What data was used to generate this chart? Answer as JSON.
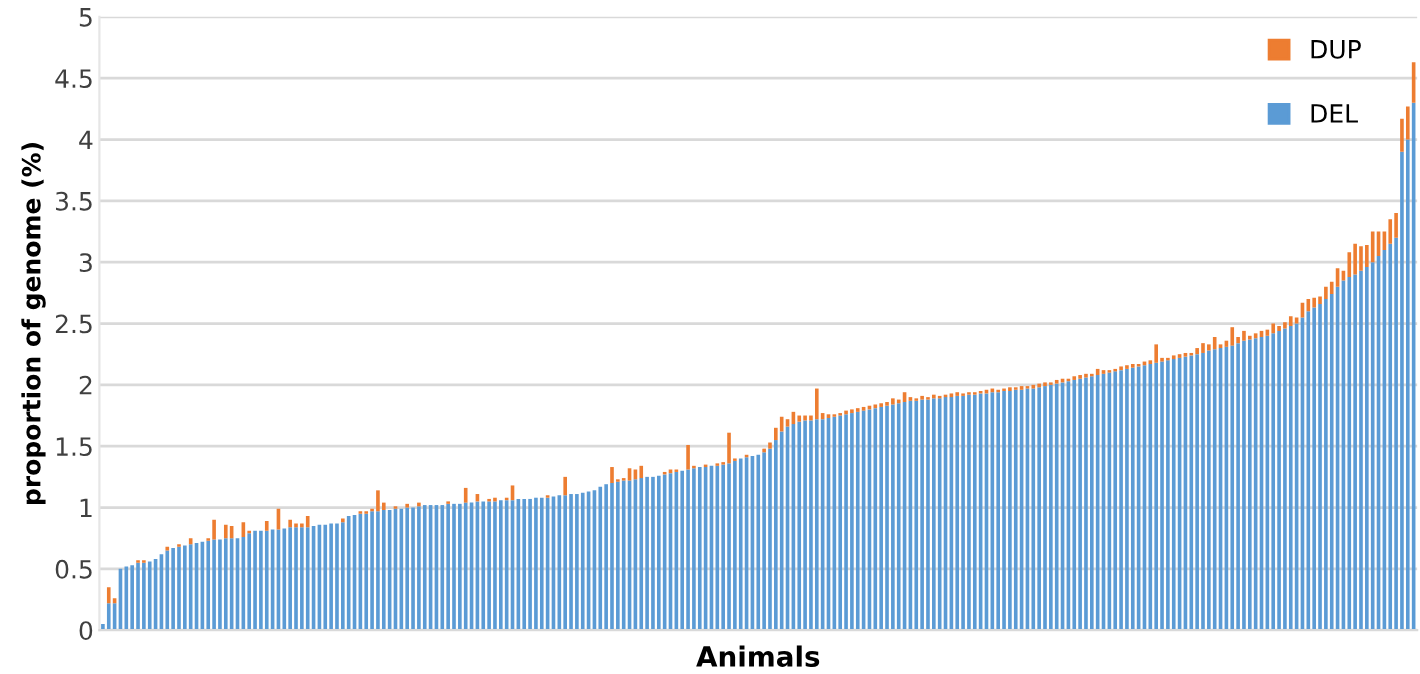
{
  "chart_data": {
    "type": "bar",
    "stacked": true,
    "xlabel": "Animals",
    "ylabel": "proportion of genome (%)",
    "categories": [
      null,
      null,
      null,
      null,
      null,
      null,
      null,
      null,
      null,
      null,
      null,
      null,
      null,
      null,
      null,
      null,
      null,
      null,
      null,
      null,
      null,
      null,
      null,
      null,
      null,
      null,
      null,
      null,
      null,
      null,
      null,
      null,
      null,
      null,
      null,
      null,
      null,
      null,
      null,
      null,
      null,
      null,
      null,
      null,
      null,
      null,
      null,
      null,
      null,
      null,
      null,
      null,
      null,
      null,
      null,
      null,
      null,
      null,
      null,
      null,
      null,
      null,
      null,
      null,
      null,
      null,
      null,
      null,
      null,
      null,
      null,
      null,
      null,
      null,
      null,
      null,
      null,
      null,
      null,
      null,
      null,
      null,
      null,
      null,
      null,
      null,
      null,
      null,
      null,
      null,
      null,
      null,
      null,
      null,
      null,
      null,
      null,
      null,
      null,
      null,
      null,
      null,
      null,
      null,
      null,
      null,
      null,
      null,
      null,
      null,
      null,
      null,
      null,
      null,
      null,
      null,
      null,
      null,
      null,
      null,
      null,
      null,
      null,
      null,
      null,
      null,
      null,
      null,
      null,
      null,
      null,
      null,
      null,
      null,
      null,
      null,
      null,
      null,
      null,
      null,
      null,
      null,
      null,
      null,
      null,
      null,
      null,
      null,
      null,
      null,
      null,
      null,
      null,
      null,
      null,
      null,
      null,
      null,
      null,
      null,
      null,
      null,
      null,
      null,
      null,
      null,
      null,
      null,
      null,
      null,
      null,
      null,
      null,
      null,
      null,
      null,
      null,
      null,
      null,
      null,
      null,
      null,
      null,
      null,
      null,
      null,
      null,
      null,
      null,
      null,
      null,
      null,
      null,
      null,
      null,
      null,
      null,
      null,
      null,
      null,
      null,
      null,
      null,
      null,
      null,
      null,
      null,
      null,
      null,
      null,
      null,
      null,
      null,
      null,
      null,
      null,
      null,
      null,
      null,
      null,
      null,
      null,
      null,
      null,
      null
    ],
    "series": [
      {
        "name": "DEL",
        "color": "#5b9bd5",
        "values": [
          0.05,
          0.22,
          0.22,
          0.5,
          0.52,
          0.53,
          0.55,
          0.55,
          0.56,
          0.58,
          0.62,
          0.65,
          0.67,
          0.68,
          0.69,
          0.7,
          0.71,
          0.72,
          0.73,
          0.74,
          0.74,
          0.75,
          0.75,
          0.75,
          0.76,
          0.79,
          0.81,
          0.81,
          0.81,
          0.82,
          0.82,
          0.83,
          0.84,
          0.84,
          0.84,
          0.84,
          0.85,
          0.86,
          0.86,
          0.87,
          0.87,
          0.88,
          0.93,
          0.94,
          0.95,
          0.95,
          0.97,
          0.97,
          0.98,
          0.98,
          0.99,
          0.99,
          1.0,
          1.0,
          1.01,
          1.02,
          1.02,
          1.02,
          1.02,
          1.03,
          1.03,
          1.03,
          1.04,
          1.04,
          1.05,
          1.05,
          1.05,
          1.05,
          1.06,
          1.06,
          1.06,
          1.07,
          1.07,
          1.07,
          1.08,
          1.08,
          1.08,
          1.09,
          1.1,
          1.1,
          1.11,
          1.11,
          1.12,
          1.13,
          1.14,
          1.17,
          1.19,
          1.2,
          1.21,
          1.22,
          1.22,
          1.23,
          1.24,
          1.25,
          1.25,
          1.26,
          1.27,
          1.28,
          1.29,
          1.3,
          1.31,
          1.32,
          1.33,
          1.33,
          1.34,
          1.34,
          1.35,
          1.36,
          1.38,
          1.4,
          1.41,
          1.42,
          1.43,
          1.45,
          1.48,
          1.55,
          1.62,
          1.66,
          1.68,
          1.7,
          1.71,
          1.71,
          1.72,
          1.72,
          1.73,
          1.74,
          1.75,
          1.76,
          1.77,
          1.78,
          1.79,
          1.8,
          1.81,
          1.82,
          1.83,
          1.84,
          1.85,
          1.86,
          1.87,
          1.87,
          1.88,
          1.88,
          1.89,
          1.89,
          1.9,
          1.9,
          1.91,
          1.91,
          1.92,
          1.92,
          1.93,
          1.93,
          1.94,
          1.94,
          1.95,
          1.95,
          1.96,
          1.96,
          1.97,
          1.97,
          1.98,
          1.99,
          2.0,
          2.01,
          2.02,
          2.03,
          2.04,
          2.05,
          2.06,
          2.07,
          2.08,
          2.09,
          2.1,
          2.11,
          2.12,
          2.13,
          2.14,
          2.15,
          2.16,
          2.17,
          2.18,
          2.19,
          2.2,
          2.21,
          2.22,
          2.23,
          2.24,
          2.25,
          2.26,
          2.28,
          2.29,
          2.3,
          2.31,
          2.32,
          2.34,
          2.36,
          2.37,
          2.38,
          2.39,
          2.4,
          2.42,
          2.44,
          2.46,
          2.48,
          2.5,
          2.55,
          2.6,
          2.63,
          2.66,
          2.7,
          2.74,
          2.8,
          2.85,
          2.88,
          2.9,
          2.93,
          2.96,
          3.0,
          3.05,
          3.1,
          3.15,
          3.2,
          3.9,
          4.0,
          4.3
        ]
      },
      {
        "name": "DUP",
        "color": "#ed7d31",
        "values": [
          0,
          0.13,
          0.04,
          0,
          0,
          0,
          0.02,
          0.02,
          0,
          0,
          0,
          0.03,
          0,
          0.02,
          0,
          0.05,
          0,
          0,
          0.02,
          0.16,
          0,
          0.11,
          0.1,
          0,
          0.12,
          0.02,
          0,
          0,
          0.08,
          0,
          0.17,
          0,
          0.06,
          0.03,
          0.03,
          0.09,
          0,
          0,
          0,
          0,
          0,
          0.03,
          0,
          0,
          0.02,
          0.02,
          0.02,
          0.17,
          0.06,
          0,
          0.02,
          0,
          0.03,
          0,
          0.03,
          0,
          0,
          0,
          0,
          0.02,
          0,
          0,
          0.12,
          0,
          0.06,
          0,
          0.02,
          0.03,
          0,
          0.02,
          0.12,
          0,
          0,
          0,
          0,
          0,
          0.02,
          0,
          0,
          0.15,
          0,
          0,
          0,
          0,
          0,
          0,
          0,
          0.13,
          0.02,
          0.02,
          0.1,
          0.08,
          0.1,
          0,
          0,
          0,
          0.02,
          0.03,
          0.02,
          0,
          0.2,
          0.02,
          0,
          0.02,
          0,
          0.02,
          0.02,
          0.25,
          0.02,
          0,
          0.02,
          0,
          0,
          0.03,
          0.05,
          0.1,
          0.12,
          0.06,
          0.1,
          0.05,
          0.04,
          0.04,
          0.25,
          0.05,
          0.03,
          0.02,
          0.02,
          0.03,
          0.03,
          0.03,
          0.03,
          0.03,
          0.03,
          0.03,
          0.03,
          0.05,
          0.03,
          0.08,
          0.03,
          0.02,
          0.03,
          0.02,
          0.03,
          0.02,
          0.02,
          0.03,
          0.03,
          0.02,
          0.02,
          0.02,
          0.02,
          0.03,
          0.03,
          0.02,
          0.02,
          0.03,
          0.02,
          0.03,
          0.02,
          0.03,
          0.03,
          0.03,
          0.02,
          0.03,
          0.03,
          0.02,
          0.03,
          0.03,
          0.03,
          0.02,
          0.05,
          0.03,
          0.02,
          0.02,
          0.03,
          0.03,
          0.03,
          0.02,
          0.03,
          0.03,
          0.15,
          0.03,
          0.02,
          0.03,
          0.03,
          0.03,
          0.02,
          0.05,
          0.08,
          0.05,
          0.1,
          0.03,
          0.05,
          0.15,
          0.05,
          0.08,
          0.03,
          0.04,
          0.05,
          0.05,
          0.08,
          0.04,
          0.05,
          0.08,
          0.05,
          0.12,
          0.1,
          0.08,
          0.06,
          0.1,
          0.1,
          0.15,
          0.08,
          0.2,
          0.25,
          0.2,
          0.18,
          0.25,
          0.2,
          0.15,
          0.2,
          0.2,
          0.27,
          0.27,
          0.33
        ]
      }
    ],
    "ylim": [
      0,
      5
    ],
    "yticks": [
      0,
      0.5,
      1,
      1.5,
      2,
      2.5,
      3,
      3.5,
      4,
      4.5,
      5
    ],
    "grid": "y",
    "legend": "top right"
  }
}
